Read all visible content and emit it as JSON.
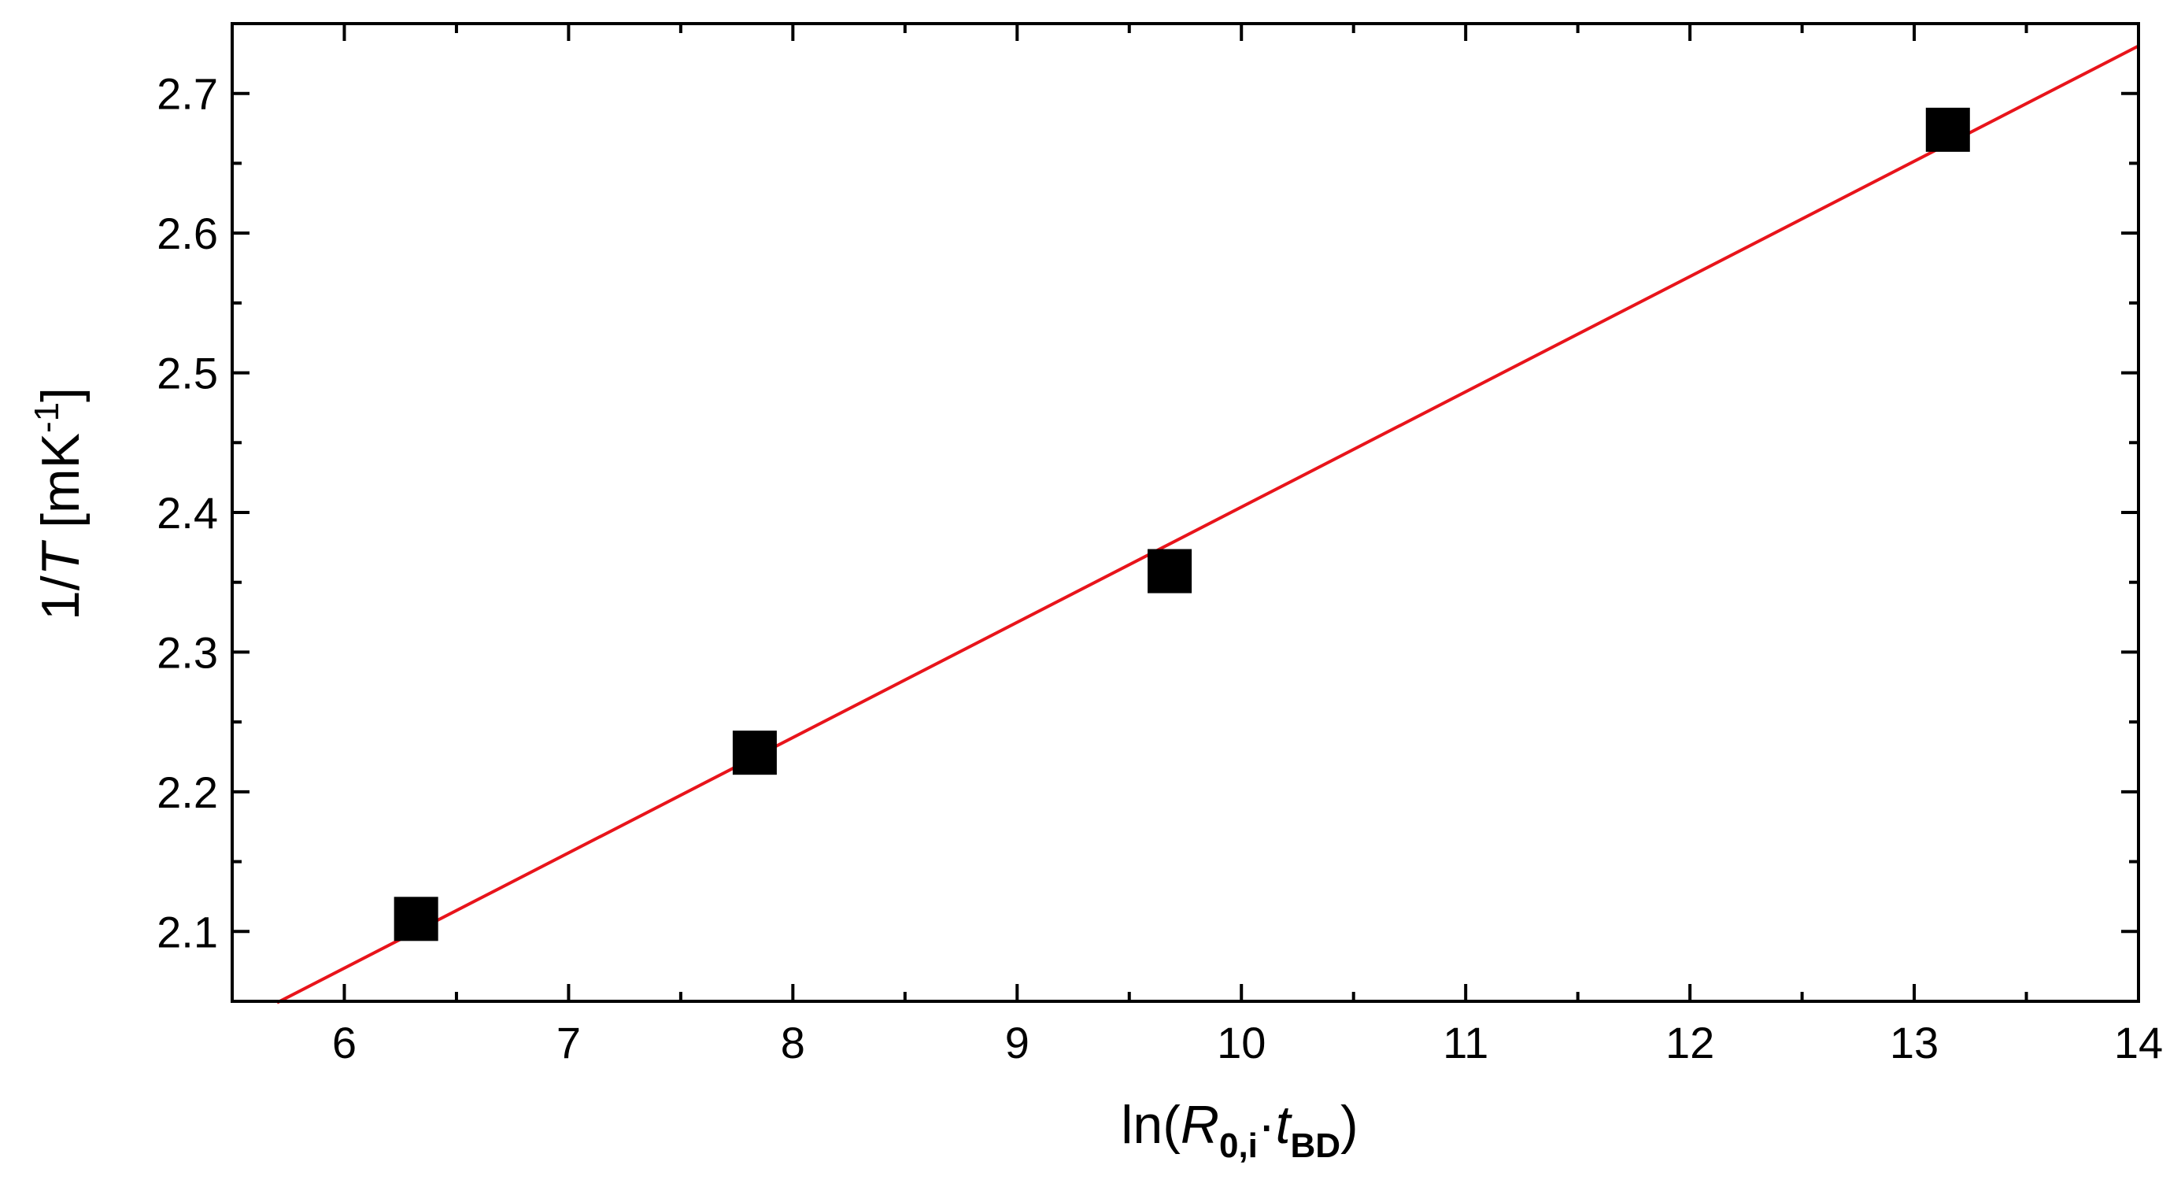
{
  "chart_data": {
    "type": "scatter",
    "xlim": [
      5.5,
      14
    ],
    "ylim": [
      2.05,
      2.75
    ],
    "x_ticks": [
      "6",
      "7",
      "8",
      "9",
      "10",
      "11",
      "12",
      "13",
      "14"
    ],
    "y_ticks": [
      "2.1",
      "2.2",
      "2.3",
      "2.4",
      "2.5",
      "2.6",
      "2.7"
    ],
    "xlabel": {
      "prefix": "ln(",
      "var1": "R",
      "sub1": "0,i",
      "dot": "·",
      "var2": "t",
      "sub2": "BD",
      "suffix": ")"
    },
    "ylabel": {
      "prefix": "1/",
      "var": "T",
      "unit_open": " [mK",
      "sup": "-1",
      "unit_close": "]"
    },
    "points": [
      {
        "x": 6.32,
        "y": 2.109
      },
      {
        "x": 7.83,
        "y": 2.228
      },
      {
        "x": 9.68,
        "y": 2.358
      },
      {
        "x": 13.15,
        "y": 2.674
      }
    ],
    "fit_line": {
      "x": [
        5.7,
        14.0
      ],
      "y": [
        2.049,
        2.734
      ]
    },
    "grid": false,
    "colors": {
      "points": "#000000",
      "fit_line": "#e8141b",
      "axes": "#000000"
    }
  }
}
